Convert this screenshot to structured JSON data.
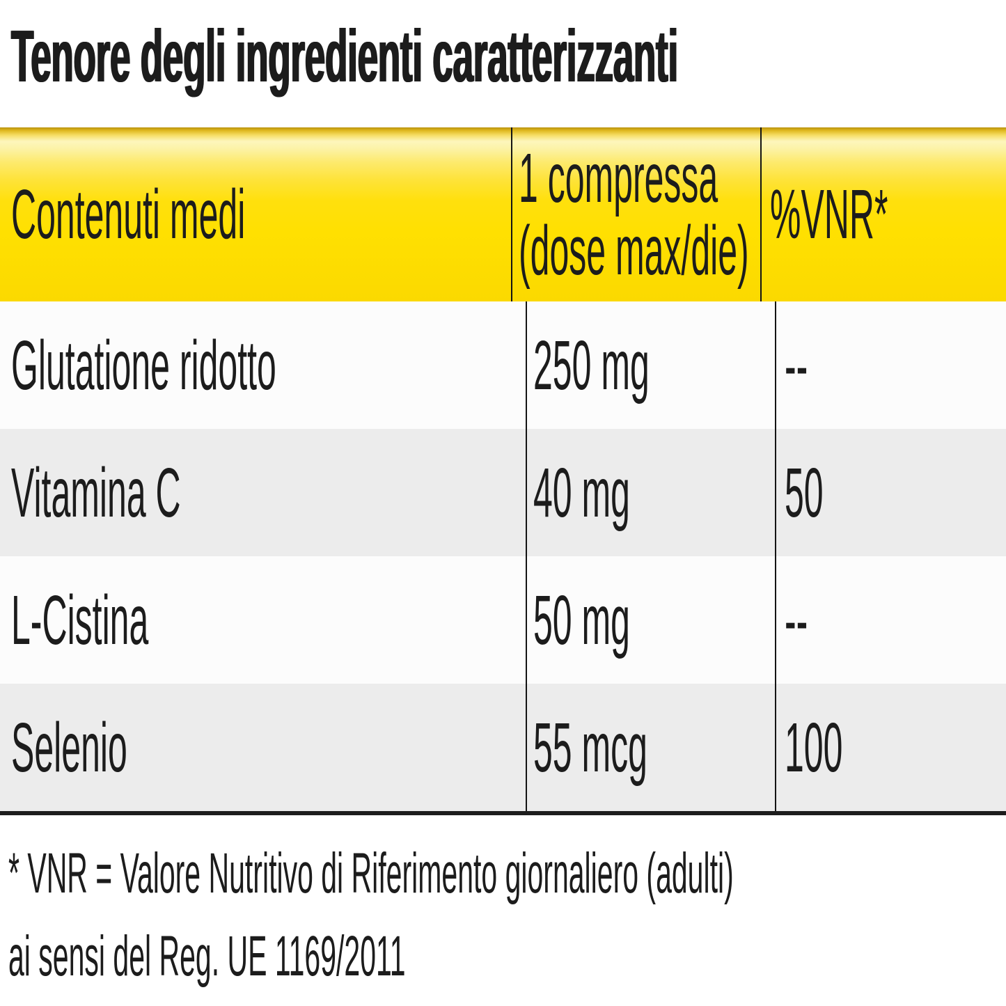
{
  "title": "Tenore degli ingredienti caratterizzanti",
  "table": {
    "header": {
      "col1": "Contenuti medi",
      "col2_line1": "1 compressa",
      "col2_line2": "(dose max/die)",
      "col3": "%VNR*"
    },
    "rows": [
      {
        "name": "Glutatione ridotto",
        "amount": "250 mg",
        "vnr": "--"
      },
      {
        "name": "Vitamina C",
        "amount": "40 mg",
        "vnr": "50"
      },
      {
        "name": "L-Cistina",
        "amount": "50 mg",
        "vnr": "--"
      },
      {
        "name": "Selenio",
        "amount": "55 mcg",
        "vnr": "100"
      }
    ]
  },
  "footnote": {
    "line1": "* VNR = Valore Nutritivo di Riferimento giornaliero (adulti)",
    "line2": "ai sensi del Reg. UE 1169/2011"
  },
  "colors": {
    "header_yellow": "#ffe001",
    "header_yellow_top": "#b9930e",
    "row_stripe_gray": "#ececec",
    "border_dark": "#1d1d1d",
    "text": "#1c1c1c"
  }
}
